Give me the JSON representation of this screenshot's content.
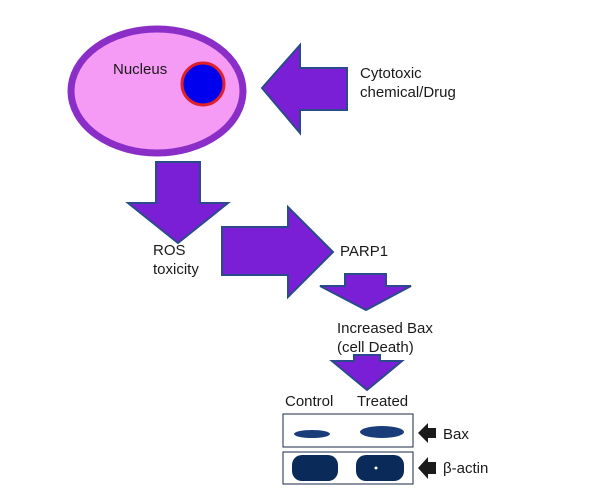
{
  "diagram": {
    "nucleus_label": "Nucleus",
    "drug_label": [
      "Cytotoxic",
      "chemical/Drug"
    ],
    "ros_label": [
      "ROS",
      "toxicity"
    ],
    "parp_label": "PARP1",
    "bax_increase_label": [
      "Increased Bax",
      "(cell Death)"
    ],
    "blot": {
      "lane_labels": [
        "Control",
        "Treated"
      ],
      "row_labels": [
        "Bax",
        "β-actin"
      ]
    },
    "colors": {
      "cell_fill": "#f59af5",
      "cell_border": "#8a2ec7",
      "nucleus_fill": "#0000ee",
      "nucleus_border": "#e0202a",
      "arrow_fill": "#7a1fd6",
      "arrow_border": "#2b4a8c",
      "band": "#1a3d7a"
    }
  }
}
